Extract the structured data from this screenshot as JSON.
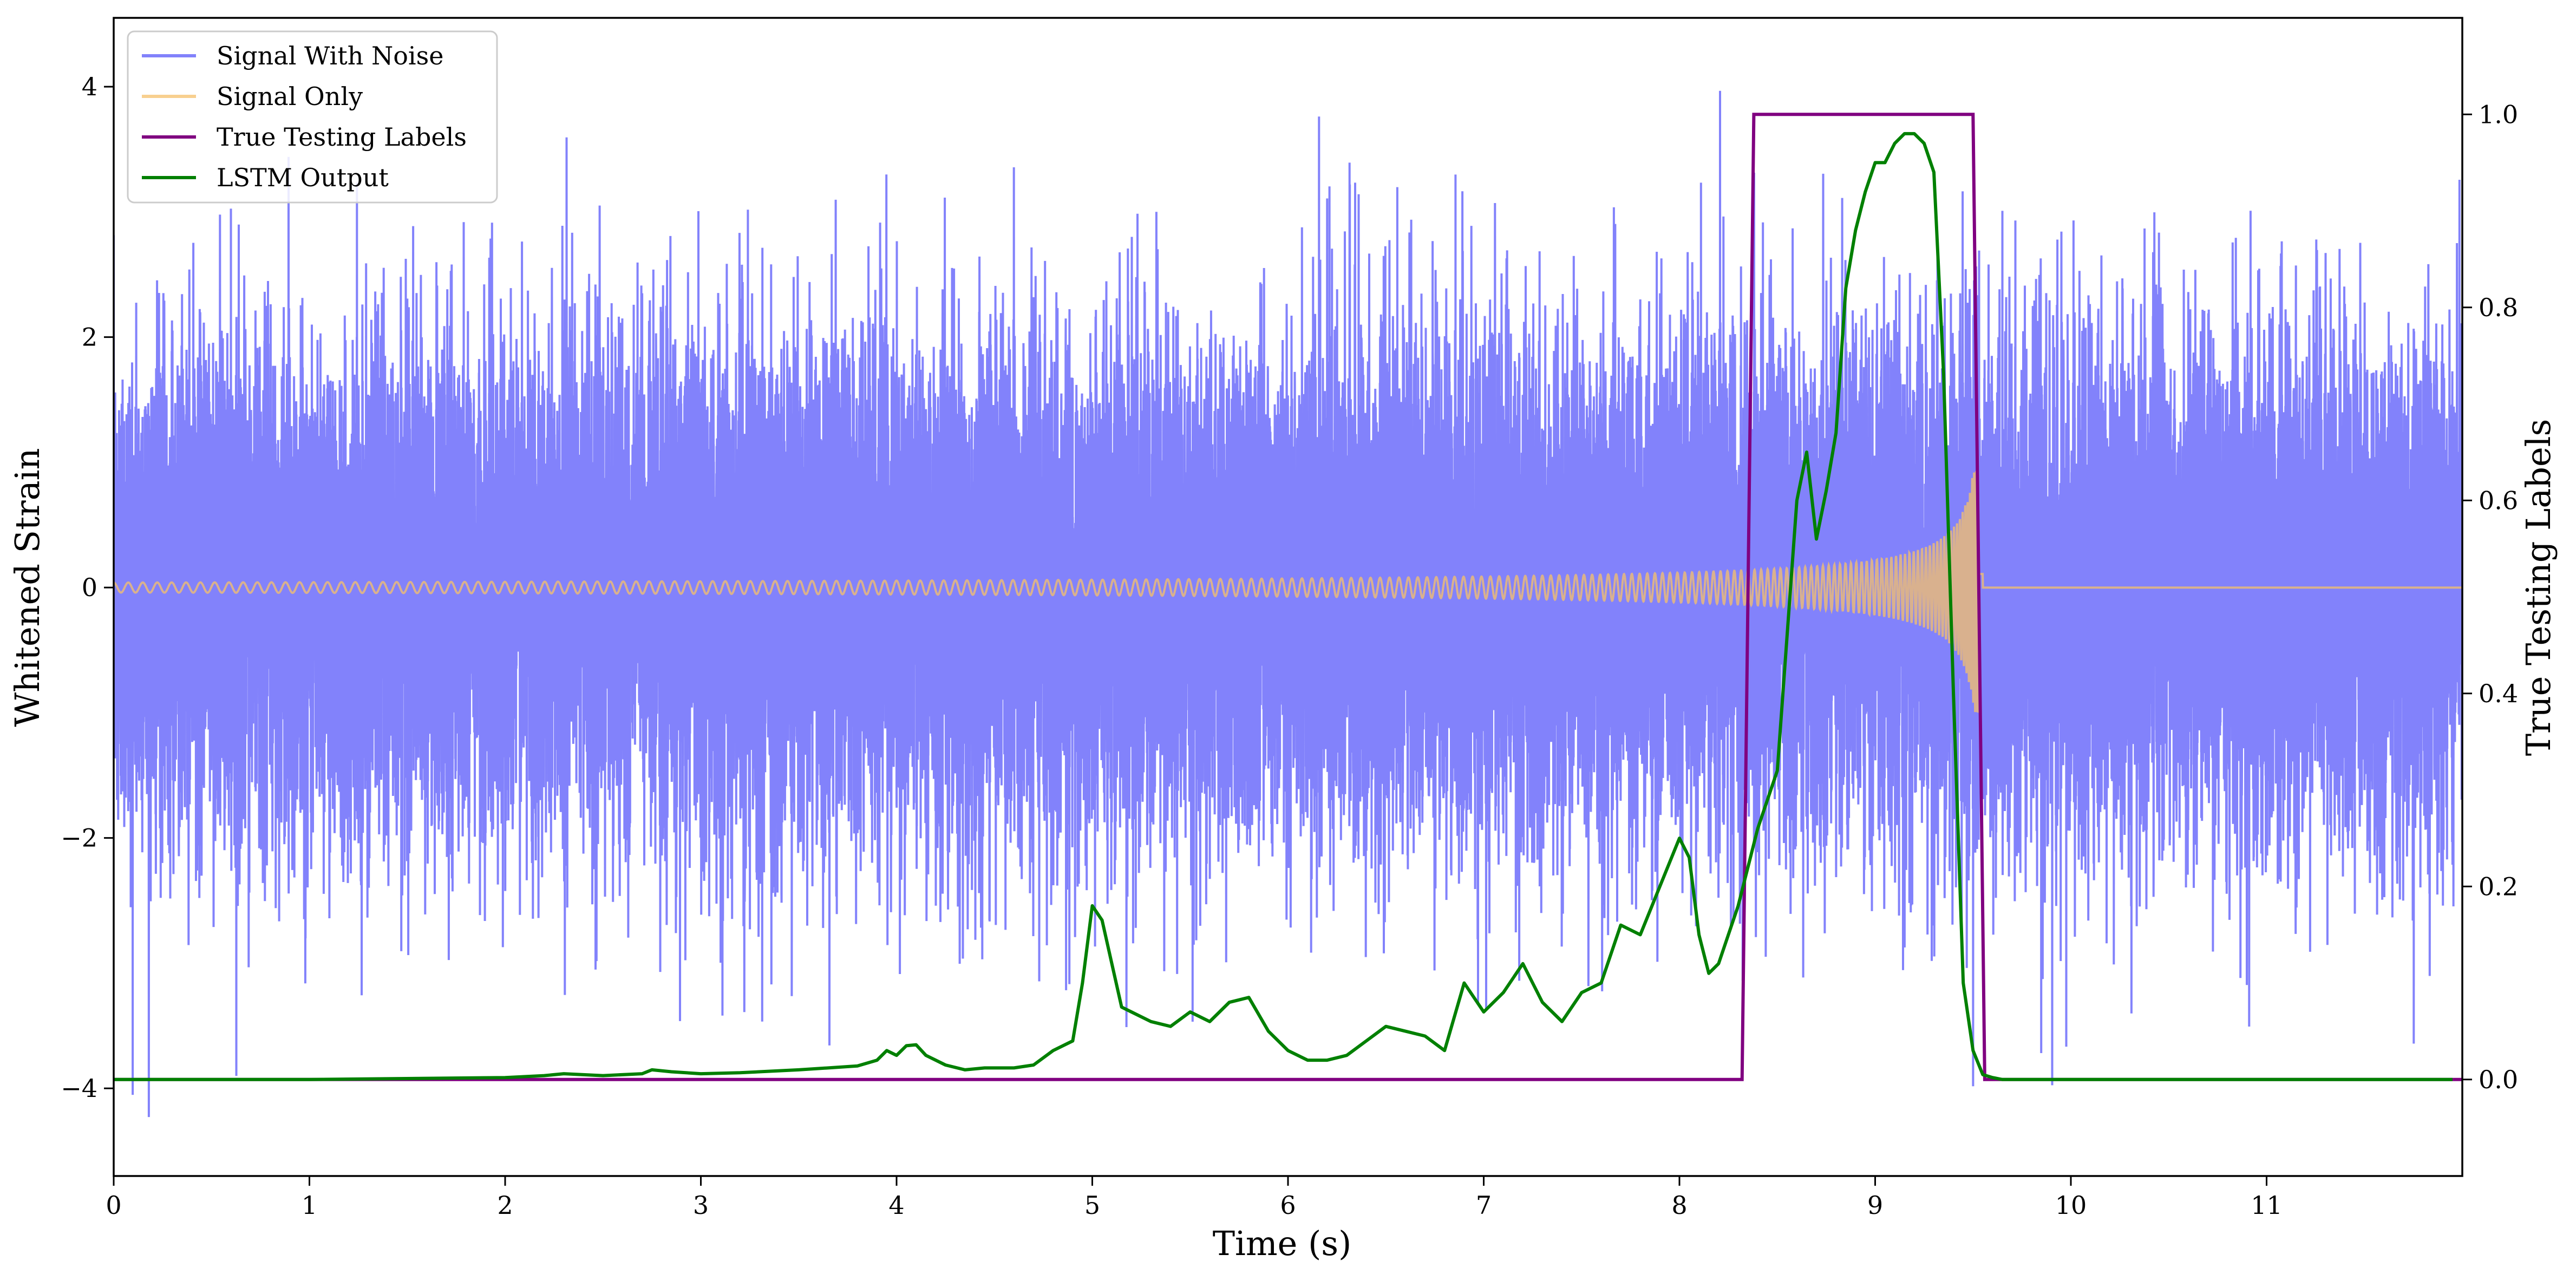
{
  "chart_data": {
    "type": "line",
    "title": "",
    "xlabel": "Time (s)",
    "ylabel_left": "Whitened Strain",
    "ylabel_right": "True Testing Labels",
    "xlim": [
      0,
      12
    ],
    "ylim_left": [
      -4.7,
      4.55
    ],
    "ylim_right": [
      -0.1,
      1.1
    ],
    "x_ticks": [
      0,
      1,
      2,
      3,
      4,
      5,
      6,
      7,
      8,
      9,
      10,
      11
    ],
    "x_tick_labels": [
      "0",
      "1",
      "2",
      "3",
      "4",
      "5",
      "6",
      "7",
      "8",
      "9",
      "10",
      "11"
    ],
    "y_ticks_left": [
      -4,
      -2,
      0,
      2,
      4
    ],
    "y_tick_labels_left": [
      "−4",
      "−2",
      "0",
      "2",
      "4"
    ],
    "y_ticks_right": [
      0.0,
      0.2,
      0.4,
      0.6,
      0.8,
      1.0
    ],
    "y_tick_labels_right": [
      "0.0",
      "0.2",
      "0.4",
      "0.6",
      "0.8",
      "1.0"
    ],
    "legend_position": "upper-left",
    "grid": false,
    "series": [
      {
        "name": "Signal With Noise",
        "axis": "left",
        "color": "#7b7bfb",
        "description_values": {
          "type": "noise",
          "std": 1.0,
          "max": 4.15,
          "min": -4.3
        }
      },
      {
        "name": "Signal Only",
        "axis": "left",
        "color": "#f5c06a",
        "chirp": {
          "amplitude_start": 0.04,
          "amplitude_peak": 1.0,
          "t_peak": 9.55,
          "t_end": 9.55,
          "value_after": 0.0
        }
      },
      {
        "name": "True Testing Labels",
        "axis": "right",
        "color": "#800080",
        "x": [
          0,
          8.32,
          8.38,
          9.5,
          9.56,
          12
        ],
        "y": [
          0,
          0,
          1,
          1,
          0,
          0
        ]
      },
      {
        "name": "LSTM Output",
        "axis": "right",
        "color": "#008000",
        "x": [
          0,
          1.0,
          2.0,
          2.2,
          2.3,
          2.5,
          2.7,
          2.75,
          2.85,
          3.0,
          3.2,
          3.5,
          3.8,
          3.9,
          3.95,
          4.0,
          4.05,
          4.1,
          4.15,
          4.25,
          4.35,
          4.45,
          4.6,
          4.7,
          4.8,
          4.9,
          4.95,
          5.0,
          5.05,
          5.1,
          5.15,
          5.2,
          5.3,
          5.4,
          5.5,
          5.6,
          5.7,
          5.8,
          5.9,
          6.0,
          6.1,
          6.2,
          6.3,
          6.4,
          6.5,
          6.6,
          6.7,
          6.8,
          6.9,
          7.0,
          7.1,
          7.2,
          7.3,
          7.4,
          7.5,
          7.6,
          7.7,
          7.8,
          7.9,
          8.0,
          8.05,
          8.1,
          8.15,
          8.2,
          8.3,
          8.4,
          8.5,
          8.6,
          8.65,
          8.7,
          8.75,
          8.8,
          8.85,
          8.9,
          8.95,
          9.0,
          9.05,
          9.1,
          9.15,
          9.2,
          9.25,
          9.3,
          9.35,
          9.4,
          9.45,
          9.5,
          9.55,
          9.6,
          9.65,
          9.7,
          9.8,
          9.9,
          10.0,
          11.0,
          11.95
        ],
        "y": [
          0.0,
          0.0,
          0.002,
          0.004,
          0.006,
          0.004,
          0.006,
          0.01,
          0.008,
          0.006,
          0.007,
          0.01,
          0.014,
          0.02,
          0.03,
          0.025,
          0.035,
          0.036,
          0.025,
          0.015,
          0.01,
          0.012,
          0.012,
          0.015,
          0.03,
          0.04,
          0.1,
          0.18,
          0.165,
          0.12,
          0.075,
          0.07,
          0.06,
          0.055,
          0.07,
          0.06,
          0.08,
          0.085,
          0.05,
          0.03,
          0.02,
          0.02,
          0.025,
          0.04,
          0.055,
          0.05,
          0.045,
          0.03,
          0.1,
          0.07,
          0.09,
          0.12,
          0.08,
          0.06,
          0.09,
          0.1,
          0.16,
          0.15,
          0.2,
          0.25,
          0.23,
          0.15,
          0.11,
          0.12,
          0.18,
          0.26,
          0.32,
          0.6,
          0.65,
          0.56,
          0.61,
          0.67,
          0.82,
          0.88,
          0.92,
          0.95,
          0.95,
          0.97,
          0.98,
          0.98,
          0.97,
          0.94,
          0.73,
          0.4,
          0.1,
          0.03,
          0.005,
          0.002,
          0.0,
          0.0,
          0.0,
          0.0,
          0.0,
          0.0,
          0.0
        ]
      }
    ]
  }
}
